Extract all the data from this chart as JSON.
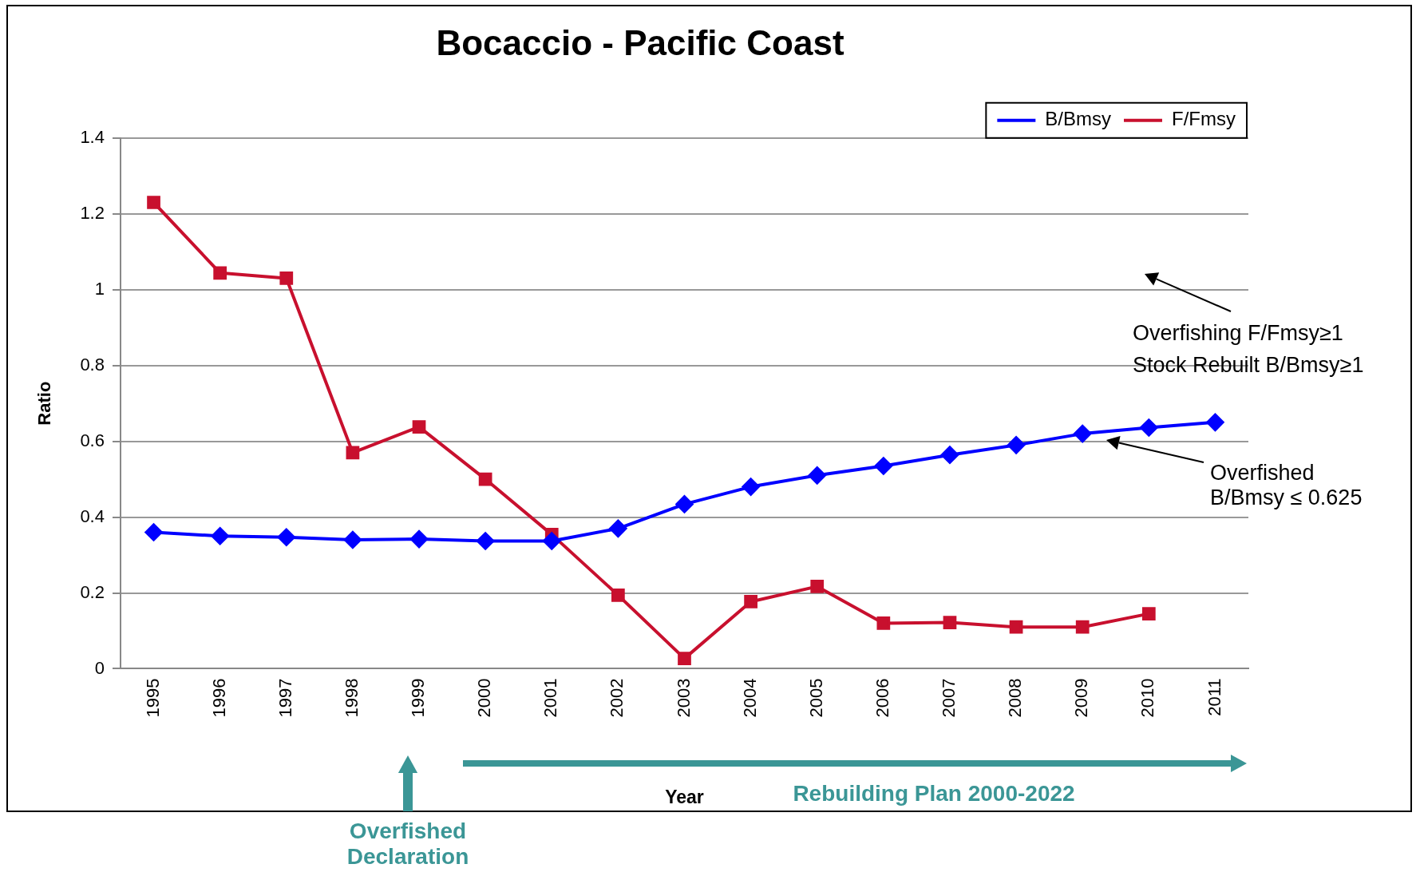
{
  "chart_data": {
    "type": "line",
    "title": "Bocaccio - Pacific Coast",
    "xlabel": "Year",
    "ylabel": "Ratio",
    "categories": [
      "1995",
      "1996",
      "1997",
      "1998",
      "1999",
      "2000",
      "2001",
      "2002",
      "2003",
      "2004",
      "2005",
      "2006",
      "2007",
      "2008",
      "2009",
      "2010",
      "2011"
    ],
    "series": [
      {
        "name": "B/Bmsy",
        "color": "#0000ff",
        "marker": "diamond",
        "values": [
          0.36,
          0.35,
          0.347,
          0.34,
          0.342,
          0.337,
          0.337,
          0.37,
          0.434,
          0.48,
          0.51,
          0.535,
          0.564,
          0.59,
          0.62,
          0.636,
          0.65
        ]
      },
      {
        "name": "F/Fmsy",
        "color": "#c8102e",
        "marker": "square",
        "values": [
          1.23,
          1.044,
          1.03,
          0.57,
          0.638,
          0.5,
          0.354,
          0.194,
          0.027,
          0.177,
          0.217,
          0.12,
          0.122,
          0.11,
          0.11,
          0.145,
          null
        ]
      }
    ],
    "ylim": [
      0,
      1.4
    ],
    "yticks": [
      0,
      {
        "value": 0.2,
        "label": "0.2"
      },
      {
        "value": 0.4,
        "label": "0.4"
      },
      {
        "value": 0.6,
        "label": "0.6"
      },
      {
        "value": 0.8,
        "label": "0.8"
      },
      1,
      {
        "value": 1.2,
        "label": "1.2"
      },
      {
        "value": 1.4,
        "label": "1.4"
      }
    ],
    "grid": "y",
    "legend": "top right",
    "line_style": "solid",
    "annotations": [
      "Overfishing F/Fmsy≥1",
      "Stock Rebuilt B/Bmsy≥1",
      "Overfished B/Bmsy ≤ 0.625",
      "Rebuilding Plan 2000-2022",
      "Overfished Declaration"
    ]
  }
}
